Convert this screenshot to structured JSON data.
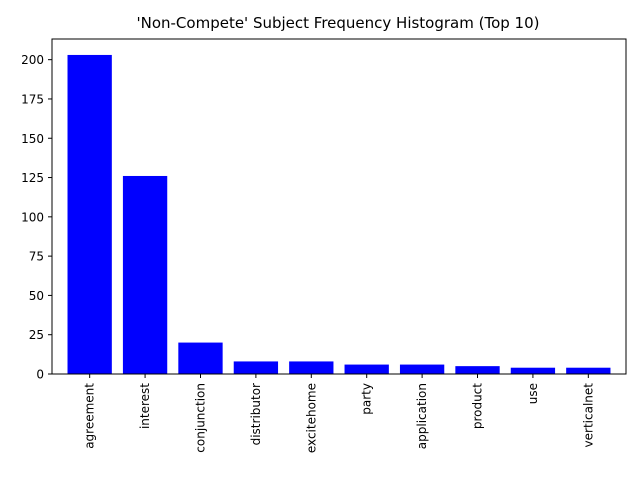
{
  "chart_data": {
    "type": "bar",
    "title": "'Non-Compete' Subject Frequency Histogram (Top 10)",
    "xlabel": "",
    "ylabel": "",
    "categories": [
      "agreement",
      "interest",
      "conjunction",
      "distributor",
      "excitehome",
      "party",
      "application",
      "product",
      "use",
      "verticalnet"
    ],
    "values": [
      203,
      126,
      20,
      8,
      8,
      6,
      6,
      5,
      4,
      4
    ],
    "ylim": [
      0,
      213.15
    ],
    "yticks": [
      0,
      25,
      50,
      75,
      100,
      125,
      150,
      175,
      200
    ],
    "bar_color": "#0000ff",
    "grid": false,
    "legend": "none"
  }
}
